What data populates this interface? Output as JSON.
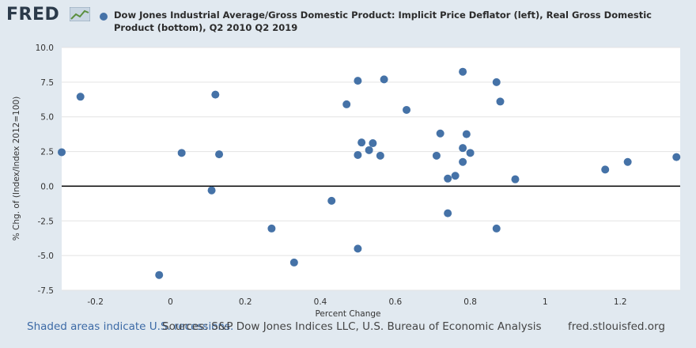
{
  "header": {
    "logo_text": "FRED",
    "logo_icon": "chart-line-icon",
    "series_title": "Dow Jones Industrial Average/Gross Domestic Product: Implicit Price Deflator (left), Real Gross Domestic Product (bottom), Q2 2010 Q2 2019"
  },
  "footer": {
    "shaded_note": "Shaded areas indicate U.S. recessions.",
    "source": "Sources: S&P Dow Jones Indices LLC, U.S. Bureau of Economic Analysis",
    "site": "fred.stlouisfed.org"
  },
  "colors": {
    "point": "#4572a7",
    "plot_bg": "#ffffff",
    "page_bg": "#e1e9f0",
    "grid": "#e3e3e3",
    "zero_line": "#000000"
  },
  "chart_data": {
    "type": "scatter",
    "xlabel": "Percent Change",
    "ylabel": "% Chg. of (Index/Index 2012=100)",
    "xlim": [
      -0.29,
      1.36
    ],
    "ylim": [
      -7.5,
      10.0
    ],
    "x_ticks": [
      -0.2,
      0,
      0.2,
      0.4,
      0.6,
      0.8,
      1,
      1.2
    ],
    "x_tick_labels": [
      "-0.2",
      "0",
      "0.2",
      "0.4",
      "0.6",
      "0.8",
      "1",
      "1.2"
    ],
    "y_ticks": [
      -7.5,
      -5.0,
      -2.5,
      0.0,
      2.5,
      5.0,
      7.5,
      10.0
    ],
    "y_tick_labels": [
      "-7.5",
      "-5.0",
      "-2.5",
      "0.0",
      "2.5",
      "5.0",
      "7.5",
      "10.0"
    ],
    "grid": true,
    "points": [
      {
        "x": -0.29,
        "y": 2.45
      },
      {
        "x": -0.24,
        "y": 6.45
      },
      {
        "x": -0.03,
        "y": -6.4
      },
      {
        "x": 0.03,
        "y": 2.4
      },
      {
        "x": 0.11,
        "y": -0.3
      },
      {
        "x": 0.12,
        "y": 6.6
      },
      {
        "x": 0.13,
        "y": 2.3
      },
      {
        "x": 0.27,
        "y": -3.05
      },
      {
        "x": 0.33,
        "y": -5.5
      },
      {
        "x": 0.43,
        "y": -1.05
      },
      {
        "x": 0.47,
        "y": 5.9
      },
      {
        "x": 0.5,
        "y": 7.6
      },
      {
        "x": 0.5,
        "y": 2.25
      },
      {
        "x": 0.5,
        "y": -4.5
      },
      {
        "x": 0.51,
        "y": 3.15
      },
      {
        "x": 0.53,
        "y": 2.6
      },
      {
        "x": 0.54,
        "y": 3.1
      },
      {
        "x": 0.56,
        "y": 2.2
      },
      {
        "x": 0.57,
        "y": 7.7
      },
      {
        "x": 0.63,
        "y": 5.5
      },
      {
        "x": 0.71,
        "y": 2.2
      },
      {
        "x": 0.72,
        "y": 3.8
      },
      {
        "x": 0.74,
        "y": -1.95
      },
      {
        "x": 0.74,
        "y": 0.55
      },
      {
        "x": 0.76,
        "y": 0.75
      },
      {
        "x": 0.78,
        "y": 8.25
      },
      {
        "x": 0.78,
        "y": 2.75
      },
      {
        "x": 0.78,
        "y": 1.75
      },
      {
        "x": 0.79,
        "y": 3.75
      },
      {
        "x": 0.8,
        "y": 2.4
      },
      {
        "x": 0.87,
        "y": 7.5
      },
      {
        "x": 0.87,
        "y": -3.05
      },
      {
        "x": 0.88,
        "y": 6.1
      },
      {
        "x": 0.92,
        "y": 0.5
      },
      {
        "x": 1.16,
        "y": 1.2
      },
      {
        "x": 1.22,
        "y": 1.75
      },
      {
        "x": 1.35,
        "y": 2.1
      }
    ]
  }
}
